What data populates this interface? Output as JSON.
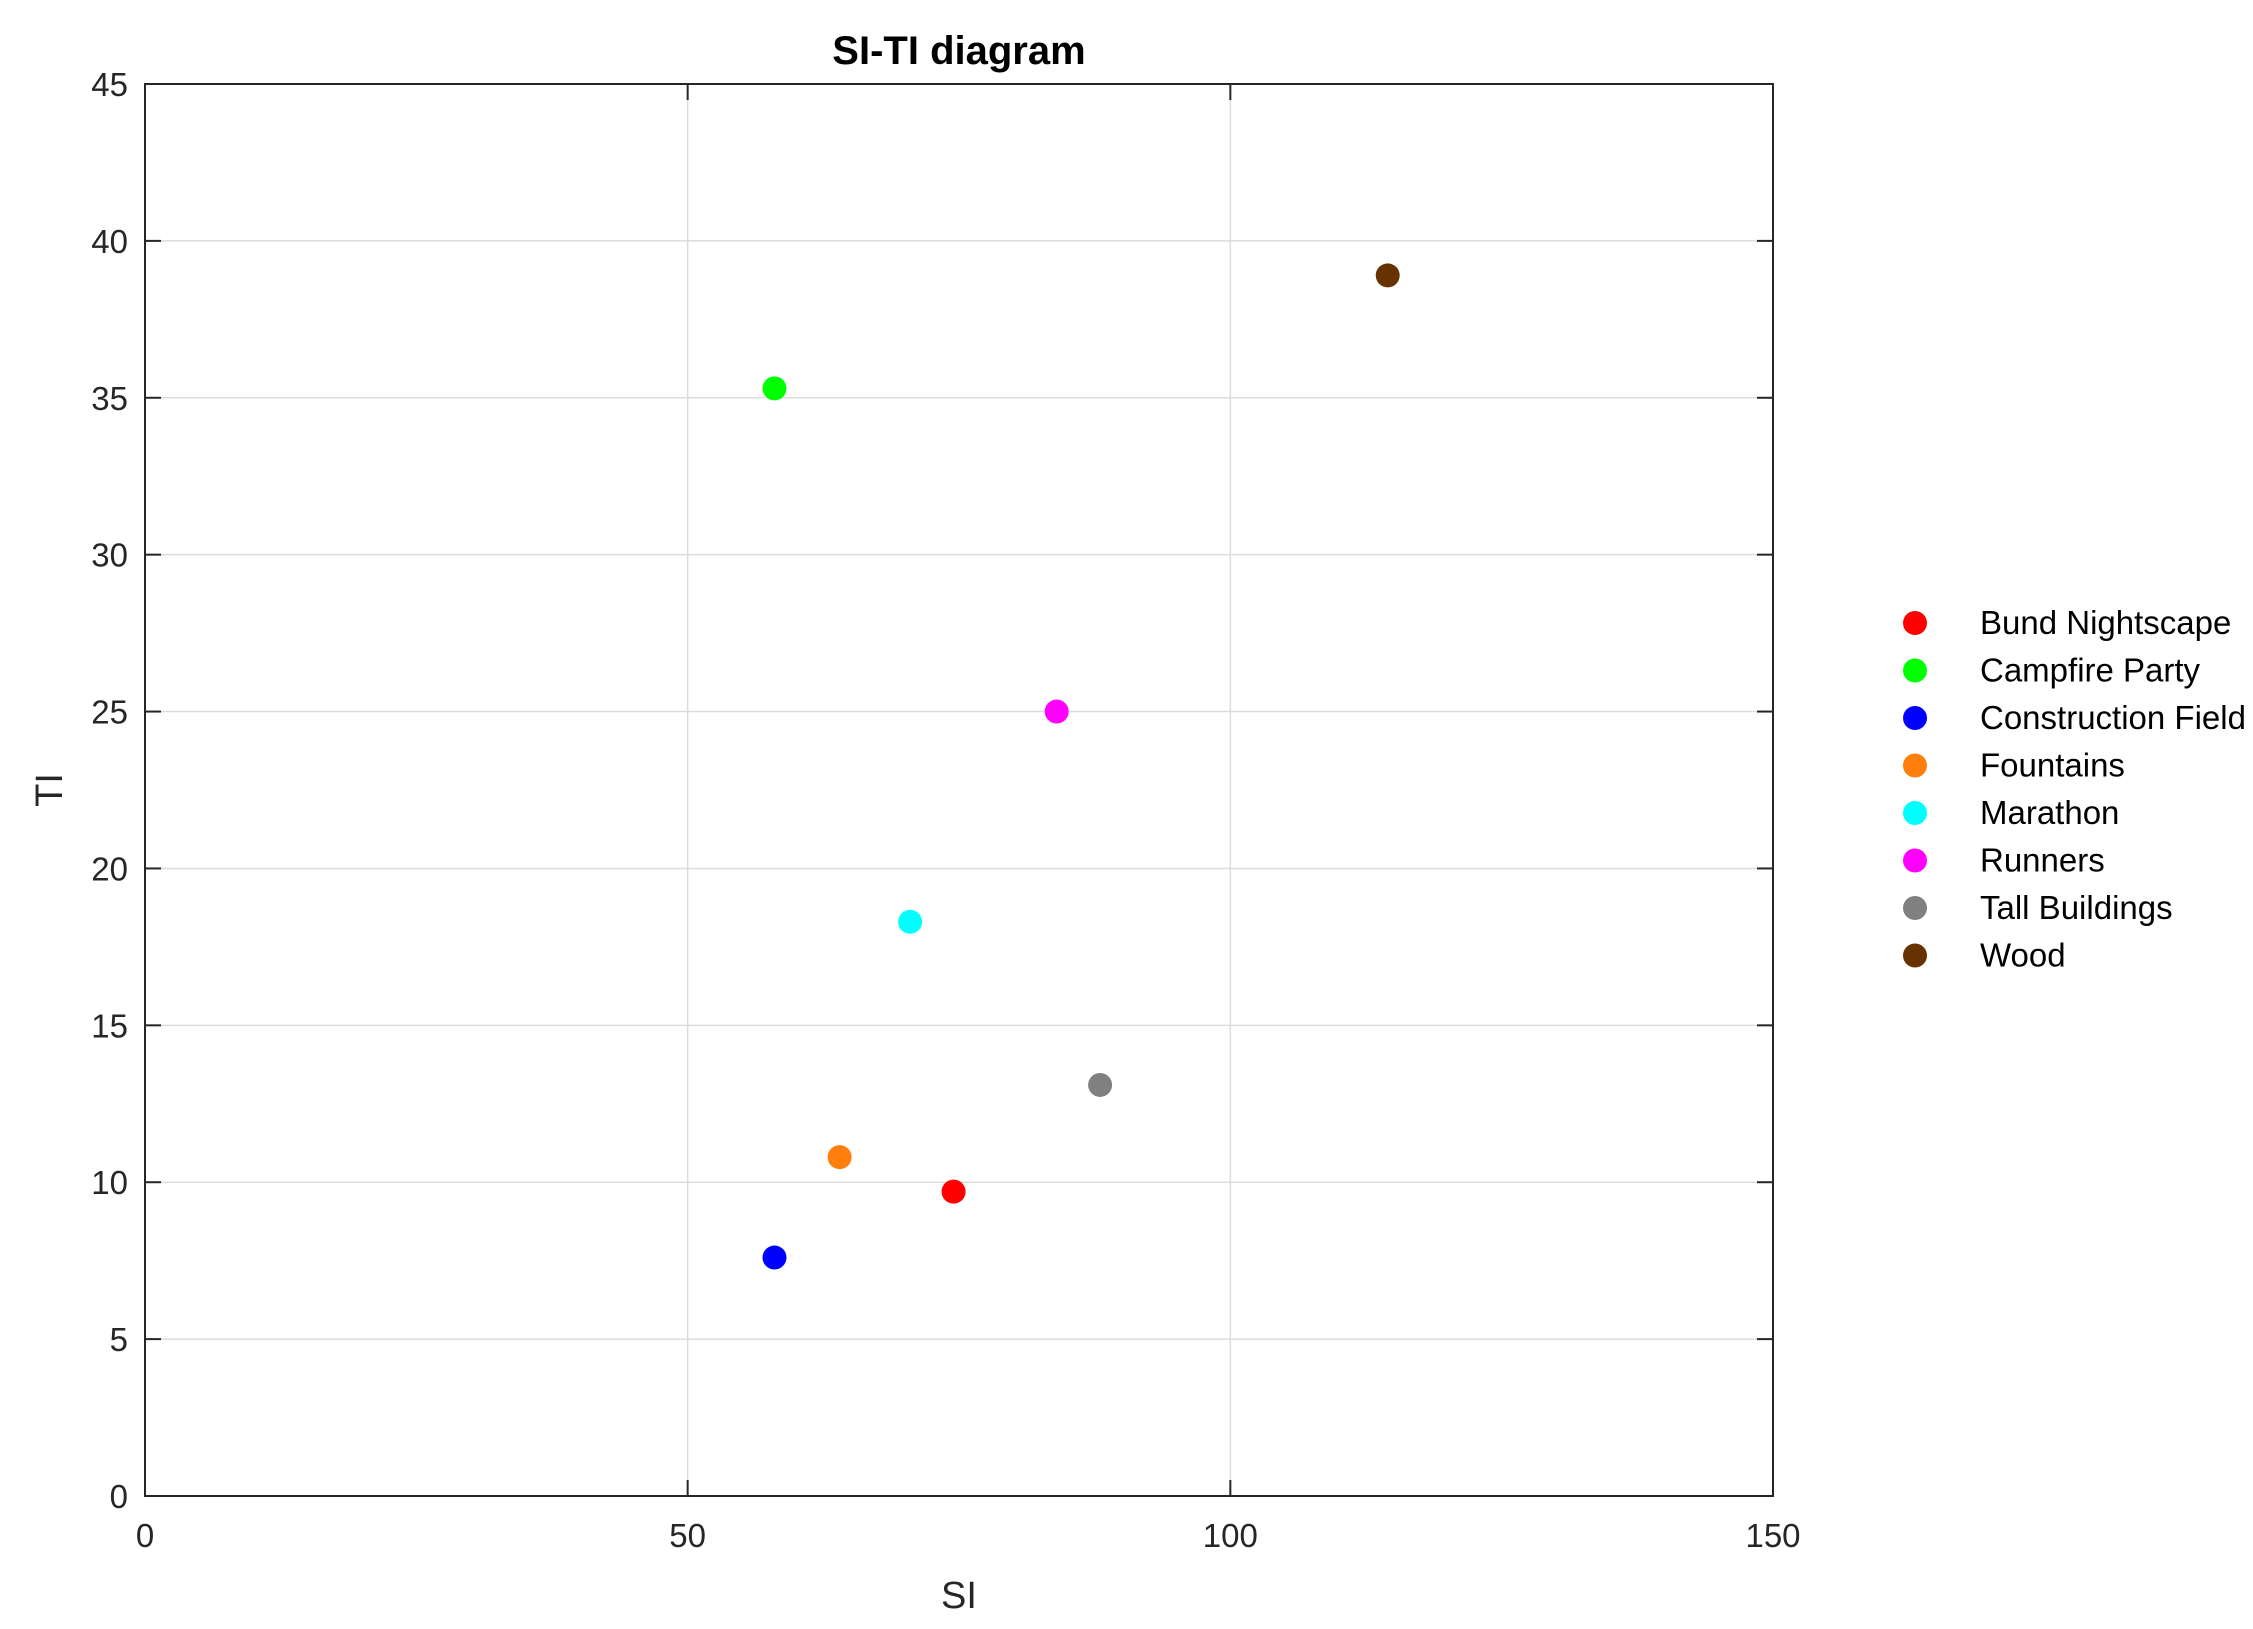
{
  "chart_data": {
    "type": "scatter",
    "title": "SI-TI diagram",
    "xlabel": "SI",
    "ylabel": "TI",
    "xlim": [
      0,
      150
    ],
    "ylim": [
      0,
      45
    ],
    "xticks": [
      0,
      50,
      100,
      150
    ],
    "yticks": [
      0,
      5,
      10,
      15,
      20,
      25,
      30,
      35,
      40,
      45
    ],
    "grid": true,
    "legend_position": "right",
    "series": [
      {
        "name": "Bund Nightscape",
        "color": "#ff0000",
        "points": [
          {
            "x": 74.5,
            "y": 9.7
          }
        ]
      },
      {
        "name": "Campfire Party",
        "color": "#00ff00",
        "points": [
          {
            "x": 58.0,
            "y": 35.3
          }
        ]
      },
      {
        "name": "Construction Field",
        "color": "#0000ff",
        "points": [
          {
            "x": 58.0,
            "y": 7.6
          }
        ]
      },
      {
        "name": "Fountains",
        "color": "#ff7f0e",
        "points": [
          {
            "x": 64.0,
            "y": 10.8
          }
        ]
      },
      {
        "name": "Marathon",
        "color": "#00ffff",
        "points": [
          {
            "x": 70.5,
            "y": 18.3
          }
        ]
      },
      {
        "name": "Runners",
        "color": "#ff00ff",
        "points": [
          {
            "x": 84.0,
            "y": 25.0
          }
        ]
      },
      {
        "name": "Tall Buildings",
        "color": "#808080",
        "points": [
          {
            "x": 88.0,
            "y": 13.1
          }
        ]
      },
      {
        "name": "Wood",
        "color": "#663300",
        "points": [
          {
            "x": 114.5,
            "y": 38.9
          }
        ]
      }
    ]
  }
}
